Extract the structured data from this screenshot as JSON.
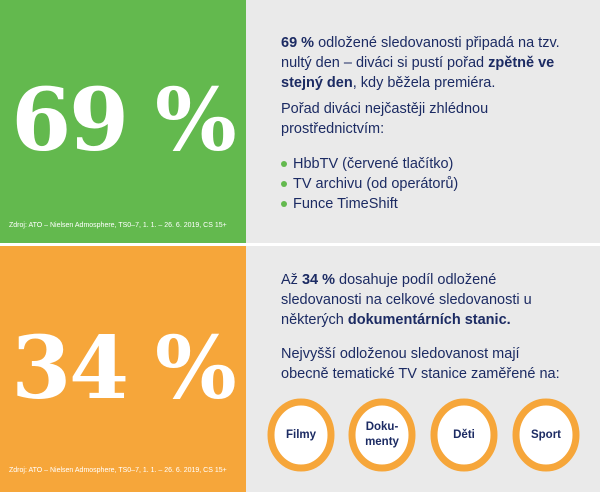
{
  "top": {
    "big_number": "69 %",
    "source": "Zdroj: ATO – Nielsen Admosphere, TS0–7, 1. 1. – 26. 6. 2019, CS 15+",
    "p1": {
      "strong1": "69 %",
      "text1": " odložené sledovanosti připadá na tzv. nultý den – diváci si pustí pořad ",
      "strong2": "zpětně ve stejný den",
      "text2": ", kdy běžela premiéra."
    },
    "p2": "Pořad diváci nejčastěji zhlédnou prostřednictvím:",
    "list": [
      "HbbTV (červené tlačítko)",
      "TV archivu (od operátorů)",
      "Funce TimeShift"
    ],
    "colors": {
      "accent": "#63b94e",
      "text": "#1c2b63",
      "panel": "#eaeaea"
    }
  },
  "bottom": {
    "big_number": "34 %",
    "source": "Zdroj: ATO – Nielsen Admosphere, TS0–7, 1. 1. – 26. 6. 2019, CS 15+",
    "p1": {
      "text1": "Až ",
      "strong1": "34 %",
      "text2": " dosahuje podíl odložené sledovanosti na celkové sledovanosti u některých ",
      "strong2": "dokumentárních stanic."
    },
    "p2": "Nejvyšší odloženou sledovanost mají obecně tematické TV stanice zaměřené na:",
    "circles": [
      {
        "line1": "Filmy",
        "line2": ""
      },
      {
        "line1": "Doku-",
        "line2": "menty"
      },
      {
        "line1": "Děti",
        "line2": ""
      },
      {
        "line1": "Sport",
        "line2": ""
      }
    ],
    "colors": {
      "accent": "#f6a63a"
    }
  }
}
